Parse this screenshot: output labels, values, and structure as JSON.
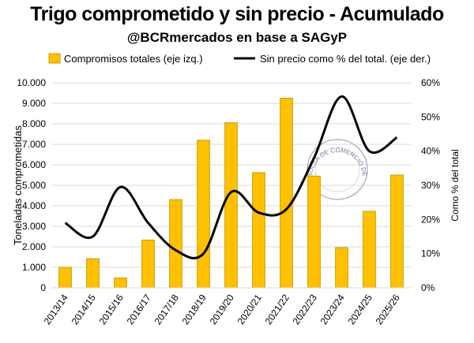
{
  "chart_data": {
    "type": "bar+line",
    "title": "Trigo comprometido y sin precio - Acumulado",
    "subtitle": "@BCRmercados en base a SAGyP",
    "categories": [
      "2013/14",
      "2014/15",
      "2015/16",
      "2016/17",
      "2017/18",
      "2018/19",
      "2019/20",
      "2020/21",
      "2021/22",
      "2022/23",
      "2023/24",
      "2024/25",
      "2025/26"
    ],
    "series": [
      {
        "name": "Compromisos totales (eje izq.)",
        "type": "bar",
        "axis": "left",
        "color": "#FFC000",
        "values": [
          1000,
          1420,
          480,
          2330,
          4300,
          7200,
          8050,
          5620,
          9250,
          5450,
          1960,
          3730,
          5500
        ]
      },
      {
        "name": "Sin precio como % del total. (eje der.)",
        "type": "line",
        "axis": "right",
        "color": "#000000",
        "values": [
          19,
          15,
          29.5,
          19,
          11,
          10,
          28,
          22,
          23,
          38,
          56,
          40,
          44
        ]
      }
    ],
    "ylabel": "Toneladas comprometidas",
    "y2label": "Como % del total",
    "ylim": [
      0,
      10000
    ],
    "y2lim": [
      0,
      60
    ],
    "yticks": [
      "0",
      "1.000",
      "2.000",
      "3.000",
      "4.000",
      "5.000",
      "6.000",
      "7.000",
      "8.000",
      "9.000",
      "10.000"
    ],
    "y2ticks": [
      "0%",
      "10%",
      "20%",
      "30%",
      "40%",
      "50%",
      "60%"
    ],
    "grid": true,
    "legend_position": "top",
    "watermark": "BOLSA DE COMERCIO DE ROSARIO"
  }
}
